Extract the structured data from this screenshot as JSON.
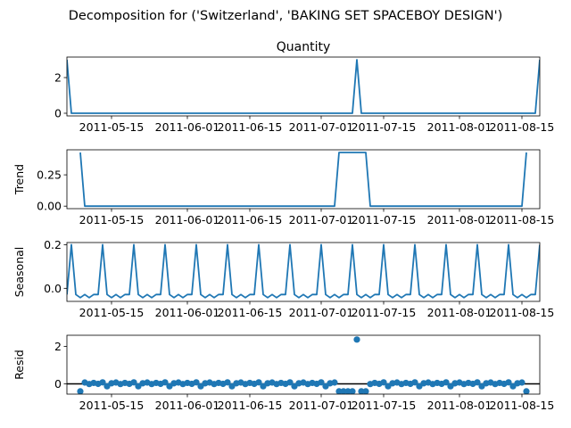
{
  "figure": {
    "suptitle": "Decomposition for ('Switzerland', 'BAKING SET SPACEBOY DESIGN')"
  },
  "colors": {
    "series": "#1f77b4",
    "zero_line": "#000000"
  },
  "chart_data": [
    {
      "type": "line",
      "panel": "observed",
      "title": "Quantity",
      "ylabel": "",
      "xlim": [
        "2011-05-05",
        "2011-08-19"
      ],
      "ylim": [
        -0.15,
        3.15
      ],
      "yticks": [
        0,
        2
      ],
      "xticks": [
        "2011-05-15",
        "2011-06-01",
        "2011-06-15",
        "2011-07-01",
        "2011-07-15",
        "2011-08-01",
        "2011-08-15"
      ],
      "spikes": [
        {
          "x": "2011-05-05",
          "y": 3
        },
        {
          "x": "2011-07-09",
          "y": 3
        },
        {
          "x": "2011-08-19",
          "y": 3
        }
      ],
      "baseline": 0
    },
    {
      "type": "line",
      "panel": "trend",
      "title": "",
      "ylabel": "Trend",
      "xlim": [
        "2011-05-05",
        "2011-08-19"
      ],
      "ylim": [
        -0.02,
        0.45
      ],
      "yticks": [
        "0.00",
        "0.25"
      ],
      "xticks": [
        "2011-05-15",
        "2011-06-01",
        "2011-06-15",
        "2011-07-01",
        "2011-07-15",
        "2011-08-01",
        "2011-08-15"
      ],
      "x": [
        "2011-05-08",
        "2011-05-09",
        "2011-07-04",
        "2011-07-05",
        "2011-07-11",
        "2011-07-12",
        "2011-08-15",
        "2011-08-16"
      ],
      "values": [
        0.4286,
        0,
        0,
        0.4286,
        0.4286,
        0,
        0,
        0.4286
      ]
    },
    {
      "type": "line",
      "panel": "seasonal",
      "title": "",
      "ylabel": "Seasonal",
      "xlim": [
        "2011-05-05",
        "2011-08-19"
      ],
      "ylim": [
        -0.06,
        0.21
      ],
      "yticks": [
        "0.0",
        "0.2"
      ],
      "xticks": [
        "2011-05-15",
        "2011-06-01",
        "2011-06-15",
        "2011-07-01",
        "2011-07-15",
        "2011-08-01",
        "2011-08-15"
      ],
      "period": 7,
      "pattern": [
        -0.0286,
        0.2,
        -0.0286,
        -0.0429,
        -0.0286,
        -0.0429,
        -0.0286
      ],
      "first_x": "2011-05-05"
    },
    {
      "type": "scatter",
      "panel": "resid",
      "title": "",
      "ylabel": "Resid",
      "xlim": [
        "2011-05-05",
        "2011-08-19"
      ],
      "ylim": [
        -0.55,
        2.6
      ],
      "yticks": [
        0,
        2
      ],
      "xticks": [
        "2011-05-15",
        "2011-06-01",
        "2011-06-15",
        "2011-07-01",
        "2011-07-15",
        "2011-08-01",
        "2011-08-15"
      ],
      "outlier": {
        "x": "2011-07-09",
        "y": 2.37
      },
      "low_block": [
        "2011-07-05",
        "2011-07-11"
      ],
      "low_value": -0.4,
      "typical": [
        0.03,
        0.07,
        -0.01,
        0.05,
        0.0,
        0.08,
        -0.13
      ]
    }
  ]
}
